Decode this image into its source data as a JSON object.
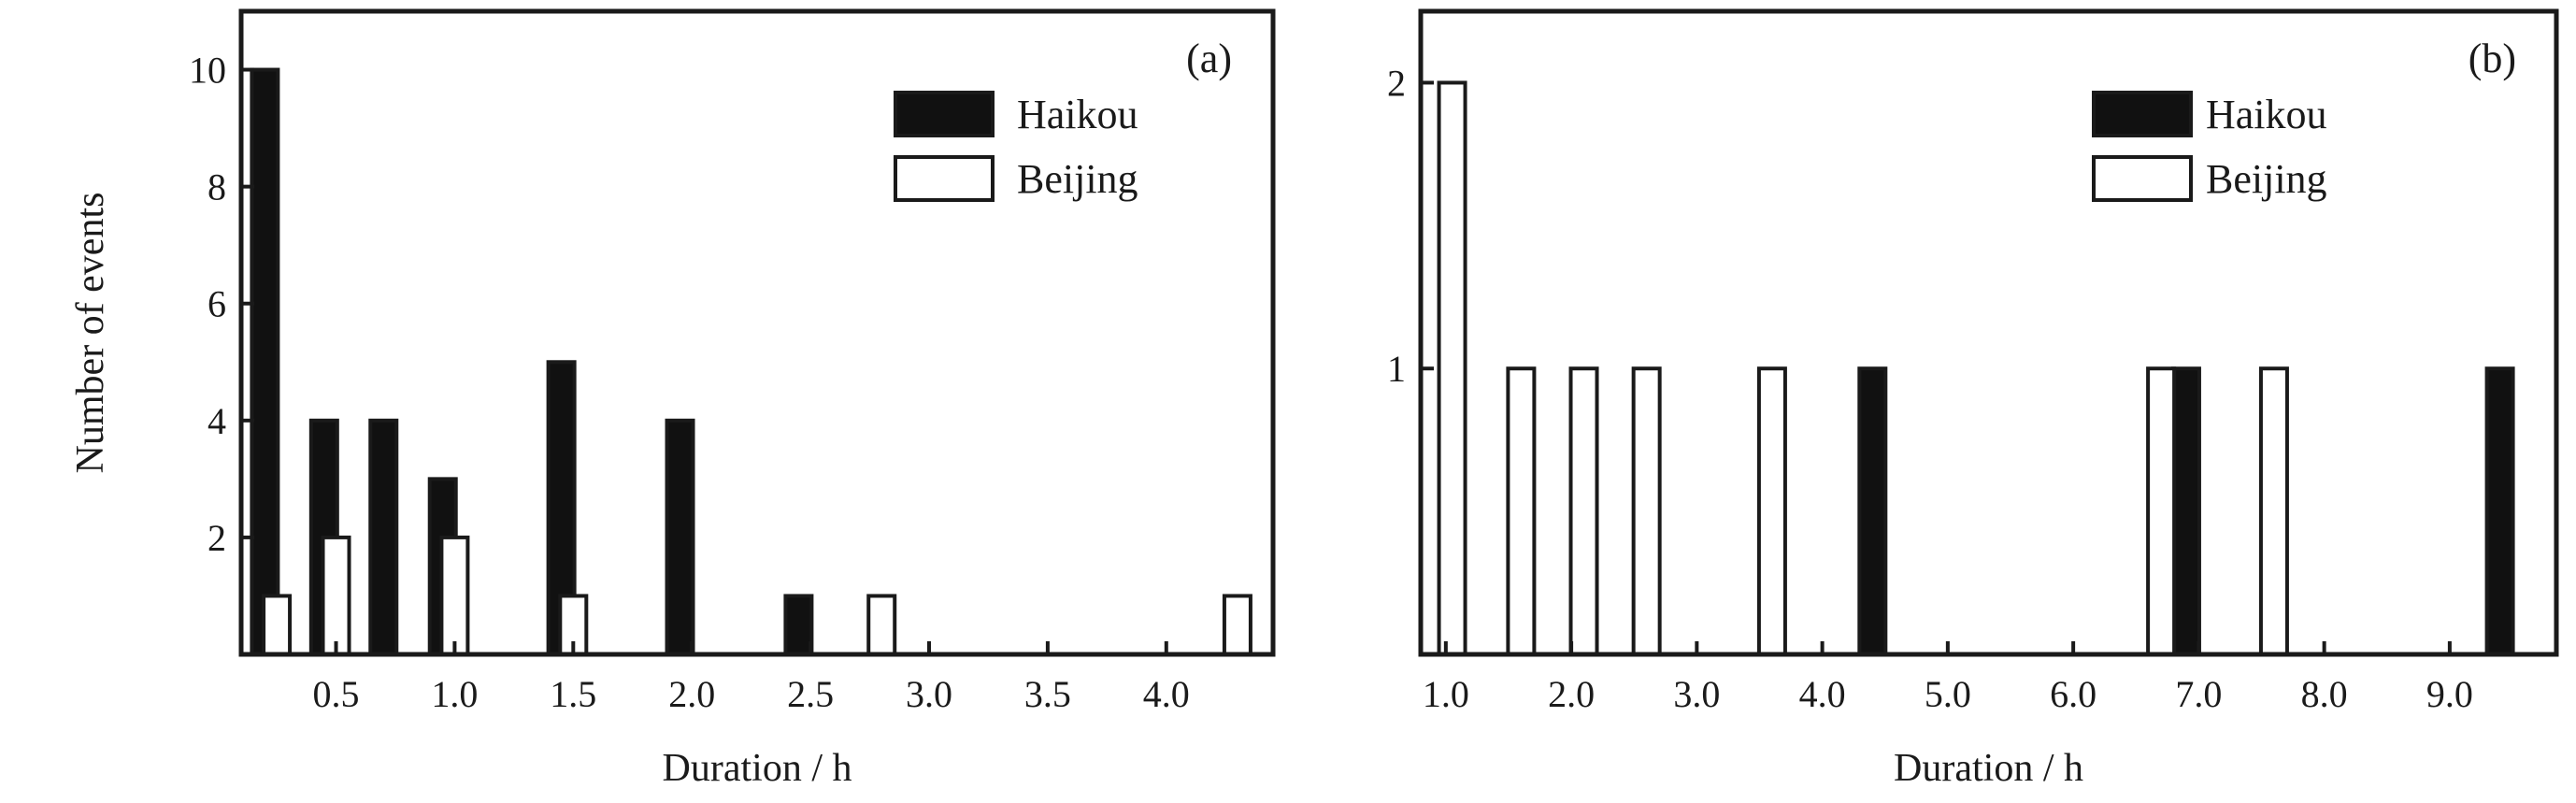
{
  "chart_data": [
    {
      "type": "bar",
      "panel_label": "(a)",
      "xlabel": "Duration / h",
      "ylabel": "Number of events",
      "ylim": [
        0,
        11
      ],
      "xlim": [
        0.1,
        4.45
      ],
      "y_ticks": [
        2,
        4,
        6,
        8,
        10
      ],
      "x_ticks": [
        0.5,
        1.0,
        1.5,
        2.0,
        2.5,
        3.0,
        3.5,
        4.0
      ],
      "x_tick_labels": [
        "0.5",
        "1.0",
        "1.5",
        "2.0",
        "2.5",
        "3.0",
        "3.5",
        "4.0"
      ],
      "legend_position": "top-right",
      "series": [
        {
          "name": "Haikou",
          "color": "#111111",
          "x": [
            0.2,
            0.45,
            0.7,
            0.95,
            1.45,
            1.95,
            2.45
          ],
          "values": [
            10,
            4,
            4,
            3,
            5,
            4,
            1
          ]
        },
        {
          "name": "Beijing",
          "color": "#ffffff",
          "x": [
            0.25,
            0.5,
            1.0,
            1.5,
            2.8,
            4.3
          ],
          "values": [
            1,
            2,
            2,
            1,
            1,
            1
          ]
        }
      ]
    },
    {
      "type": "bar",
      "panel_label": "(b)",
      "xlabel": "Duration / h",
      "ylabel": "",
      "ylim": [
        0,
        2.25
      ],
      "xlim": [
        0.8,
        9.85
      ],
      "y_ticks": [
        1,
        2
      ],
      "x_ticks": [
        1,
        2,
        3,
        4,
        5,
        6,
        7,
        8,
        9
      ],
      "x_tick_labels": [
        "1.0",
        "2.0",
        "3.0",
        "4.0",
        "5.0",
        "6.0",
        "7.0",
        "8.0",
        "9.0"
      ],
      "legend_position": "top-right",
      "series": [
        {
          "name": "Haikou",
          "color": "#111111",
          "x": [
            4.4,
            6.9,
            9.4
          ],
          "values": [
            1,
            1,
            1
          ]
        },
        {
          "name": "Beijing",
          "color": "#ffffff",
          "x": [
            1.05,
            1.6,
            2.1,
            2.6,
            3.6,
            6.7,
            7.6
          ],
          "values": [
            2,
            1,
            1,
            1,
            1,
            1,
            1
          ]
        }
      ]
    }
  ]
}
